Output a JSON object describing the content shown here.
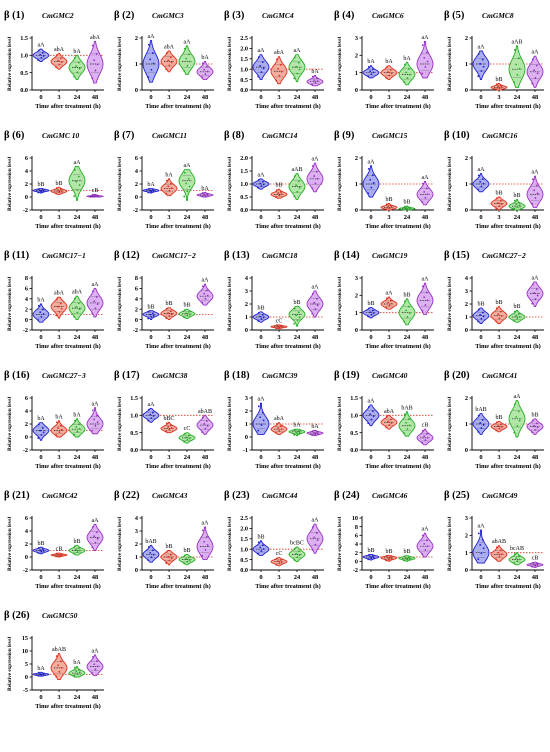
{
  "figure": {
    "background": "#ffffff",
    "x_axis_label": "Time after treatment (h)",
    "y_axis_label": "Relative expression level",
    "x_ticks": [
      "0",
      "3",
      "24",
      "48"
    ],
    "group_colors": [
      "#1f1fd6",
      "#e0301e",
      "#22b022",
      "#9b30c8"
    ],
    "fill_colors": [
      "#9ea0f0",
      "#f2a08f",
      "#a6e39a",
      "#d6a3ee"
    ],
    "baseline_color": "#e0301e"
  },
  "chart_data": [
    {
      "type": "violin",
      "panel": "β (1)",
      "gene": "CmGMC2",
      "ylim": [
        0,
        1.5
      ],
      "yticks": [
        "0.0",
        "0.5",
        "1.0",
        "1.5"
      ],
      "baseline": 1,
      "x": [
        "0",
        "3",
        "24",
        "48"
      ],
      "medians": [
        1.0,
        0.82,
        0.65,
        0.75
      ],
      "mins": [
        0.82,
        0.6,
        0.3,
        0.2
      ],
      "maxs": [
        1.18,
        1.05,
        1.0,
        1.4
      ],
      "letters": [
        "aA",
        "abA",
        "bA",
        "abA"
      ]
    },
    {
      "type": "violin",
      "panel": "β (2)",
      "gene": "CmGMC3",
      "ylim": [
        0,
        2
      ],
      "yticks": [
        "0",
        "1",
        "2"
      ],
      "baseline": 1,
      "x": [
        "0",
        "3",
        "24",
        "48"
      ],
      "medians": [
        1.0,
        1.1,
        1.1,
        0.7
      ],
      "mins": [
        0.3,
        0.7,
        0.6,
        0.4
      ],
      "maxs": [
        1.9,
        1.5,
        1.7,
        1.1
      ],
      "letters": [
        "aA",
        "abA",
        "aA",
        "bA"
      ]
    },
    {
      "type": "violin",
      "panel": "β (3)",
      "gene": "CmGMC4",
      "ylim": [
        0,
        2.5
      ],
      "yticks": [
        "0.0",
        "0.5",
        "1.0",
        "1.5",
        "2.0",
        "2.5"
      ],
      "baseline": 1,
      "x": [
        "0",
        "3",
        "24",
        "48"
      ],
      "medians": [
        1.1,
        0.9,
        1.1,
        0.4
      ],
      "mins": [
        0.5,
        0.3,
        0.4,
        0.2
      ],
      "maxs": [
        1.7,
        1.6,
        1.7,
        0.7
      ],
      "letters": [
        "aA",
        "abA",
        "aA",
        "bA"
      ]
    },
    {
      "type": "violin",
      "panel": "β (4)",
      "gene": "CmGMC6",
      "ylim": [
        0,
        3
      ],
      "yticks": [
        "0",
        "1",
        "2",
        "3"
      ],
      "baseline": 1,
      "x": [
        "0",
        "3",
        "24",
        "48"
      ],
      "medians": [
        1.0,
        1.0,
        0.9,
        1.5
      ],
      "mins": [
        0.7,
        0.6,
        0.3,
        0.7
      ],
      "maxs": [
        1.4,
        1.4,
        1.6,
        2.8
      ],
      "letters": [
        "bA",
        "bA",
        "bA",
        "aA"
      ]
    },
    {
      "type": "violin",
      "panel": "β (5)",
      "gene": "CmGMC8",
      "ylim": [
        0,
        2
      ],
      "yticks": [
        "0",
        "1",
        "2"
      ],
      "baseline": 1,
      "x": [
        "0",
        "3",
        "24",
        "48"
      ],
      "medians": [
        1.0,
        0.1,
        0.8,
        0.7
      ],
      "mins": [
        0.4,
        0.0,
        0.1,
        0.1
      ],
      "maxs": [
        1.5,
        0.25,
        1.7,
        1.3
      ],
      "letters": [
        "aA",
        "bB",
        "aAB",
        "aA"
      ]
    },
    {
      "type": "violin",
      "panel": "β (6)",
      "gene": "CmGMC 10",
      "ylim": [
        -2,
        6
      ],
      "yticks": [
        "-2",
        "0",
        "2",
        "4",
        "6"
      ],
      "baseline": 1,
      "x": [
        "0",
        "3",
        "24",
        "48"
      ],
      "medians": [
        1.0,
        0.9,
        2.5,
        0.1
      ],
      "mins": [
        0.6,
        0.4,
        -0.5,
        0.0
      ],
      "maxs": [
        1.3,
        1.5,
        4.7,
        0.4
      ],
      "letters": [
        "bB",
        "bB",
        "aA",
        "cB"
      ]
    },
    {
      "type": "violin",
      "panel": "β (7)",
      "gene": "CmGMC11",
      "ylim": [
        -2,
        6
      ],
      "yticks": [
        "-2",
        "0",
        "2",
        "4",
        "6"
      ],
      "baseline": 1,
      "x": [
        "0",
        "3",
        "24",
        "48"
      ],
      "medians": [
        1.0,
        1.3,
        2.5,
        0.3
      ],
      "mins": [
        0.6,
        0.2,
        -0.5,
        0.0
      ],
      "maxs": [
        1.3,
        2.8,
        4.2,
        0.7
      ],
      "letters": [
        "bA",
        "bA",
        "aA",
        "bA"
      ]
    },
    {
      "type": "violin",
      "panel": "β (8)",
      "gene": "CmGMC14",
      "ylim": [
        0,
        2
      ],
      "yticks": [
        "0.0",
        "0.5",
        "1.0",
        "1.5",
        "2.0"
      ],
      "baseline": 1,
      "x": [
        "0",
        "3",
        "24",
        "48"
      ],
      "medians": [
        1.0,
        0.6,
        0.9,
        1.2
      ],
      "mins": [
        0.8,
        0.45,
        0.4,
        0.7
      ],
      "maxs": [
        1.2,
        0.8,
        1.4,
        1.8
      ],
      "letters": [
        "aA",
        "bB",
        "aAB",
        "aA"
      ]
    },
    {
      "type": "violin",
      "panel": "β (9)",
      "gene": "CmGMC15",
      "ylim": [
        0,
        2
      ],
      "yticks": [
        "0",
        "1",
        "2"
      ],
      "baseline": 1,
      "x": [
        "0",
        "3",
        "24",
        "48"
      ],
      "medians": [
        1.0,
        0.1,
        0.05,
        0.6
      ],
      "mins": [
        0.5,
        0.0,
        0.0,
        0.2
      ],
      "maxs": [
        1.7,
        0.25,
        0.15,
        1.1
      ],
      "letters": [
        "aA",
        "bB",
        "bB",
        "aA"
      ]
    },
    {
      "type": "violin",
      "panel": "β (10)",
      "gene": "CmGMC16",
      "ylim": [
        0,
        2
      ],
      "yticks": [
        "0",
        "1",
        "2"
      ],
      "baseline": 1,
      "x": [
        "0",
        "3",
        "24",
        "48"
      ],
      "medians": [
        1.0,
        0.25,
        0.15,
        0.6
      ],
      "mins": [
        0.7,
        0.0,
        0.0,
        0.1
      ],
      "maxs": [
        1.4,
        0.5,
        0.4,
        1.3
      ],
      "letters": [
        "aA",
        "bB",
        "bB",
        "aA"
      ]
    },
    {
      "type": "violin",
      "panel": "β (11)",
      "gene": "CmGMC17−1",
      "ylim": [
        -2,
        8
      ],
      "yticks": [
        "-2",
        "0",
        "2",
        "4",
        "6",
        "8"
      ],
      "baseline": 1,
      "x": [
        "0",
        "3",
        "24",
        "48"
      ],
      "medians": [
        1.0,
        2.5,
        2.2,
        3.2
      ],
      "mins": [
        -0.5,
        0.3,
        0.0,
        0.5
      ],
      "maxs": [
        3.0,
        4.3,
        4.5,
        6.0
      ],
      "letters": [
        "bA",
        "abA",
        "abA",
        "aA"
      ]
    },
    {
      "type": "violin",
      "panel": "β (12)",
      "gene": "CmGMC17−2",
      "ylim": [
        -2,
        8
      ],
      "yticks": [
        "-2",
        "0",
        "2",
        "4",
        "6",
        "8"
      ],
      "baseline": 1,
      "x": [
        "0",
        "3",
        "24",
        "48"
      ],
      "medians": [
        1.0,
        1.2,
        1.1,
        4.5
      ],
      "mins": [
        0.0,
        0.0,
        0.2,
        2.8
      ],
      "maxs": [
        1.7,
        2.3,
        2.0,
        6.8
      ],
      "letters": [
        "bB",
        "bB",
        "bB",
        "aA"
      ]
    },
    {
      "type": "violin",
      "panel": "β (13)",
      "gene": "CmGMC18",
      "ylim": [
        0,
        4
      ],
      "yticks": [
        "0",
        "1",
        "2",
        "3",
        "4"
      ],
      "baseline": 1,
      "x": [
        "0",
        "3",
        "24",
        "48"
      ],
      "medians": [
        1.0,
        0.25,
        1.2,
        2.0
      ],
      "mins": [
        0.6,
        0.1,
        0.3,
        1.0
      ],
      "maxs": [
        1.4,
        0.4,
        1.8,
        3.0
      ],
      "letters": [
        "bB",
        "cC",
        "bB",
        "aA"
      ]
    },
    {
      "type": "violin",
      "panel": "β (14)",
      "gene": "CmGMC19",
      "ylim": [
        0,
        3
      ],
      "yticks": [
        "0",
        "1",
        "2",
        "3"
      ],
      "baseline": 1,
      "x": [
        "0",
        "3",
        "24",
        "48"
      ],
      "medians": [
        1.0,
        1.5,
        1.0,
        1.7
      ],
      "mins": [
        0.7,
        1.2,
        0.3,
        0.9
      ],
      "maxs": [
        1.3,
        1.9,
        1.8,
        2.7
      ],
      "letters": [
        "bB",
        "aA",
        "bB",
        "aA"
      ]
    },
    {
      "type": "violin",
      "panel": "β (15)",
      "gene": "CmGMC27−2",
      "ylim": [
        0,
        4
      ],
      "yticks": [
        "0",
        "1",
        "2",
        "3",
        "4"
      ],
      "baseline": 1,
      "x": [
        "0",
        "3",
        "24",
        "48"
      ],
      "medians": [
        1.1,
        1.1,
        1.0,
        2.8
      ],
      "mins": [
        0.5,
        0.5,
        0.6,
        1.8
      ],
      "maxs": [
        1.7,
        1.8,
        1.5,
        3.7
      ],
      "letters": [
        "bB",
        "bB",
        "bB",
        "aA"
      ]
    },
    {
      "type": "violin",
      "panel": "β (16)",
      "gene": "CmGMC27−3",
      "ylim": [
        -2,
        6
      ],
      "yticks": [
        "-2",
        "0",
        "2",
        "4",
        "6"
      ],
      "baseline": 1,
      "x": [
        "0",
        "3",
        "24",
        "48"
      ],
      "medians": [
        1.0,
        1.0,
        1.2,
        2.0
      ],
      "mins": [
        -0.5,
        0.0,
        0.0,
        0.5
      ],
      "maxs": [
        2.2,
        2.5,
        2.8,
        4.5
      ],
      "letters": [
        "bA",
        "bA",
        "bA",
        "aA"
      ]
    },
    {
      "type": "violin",
      "panel": "β (17)",
      "gene": "CmGMC38",
      "ylim": [
        0,
        1.5
      ],
      "yticks": [
        "0.0",
        "0.5",
        "1.0",
        "1.5"
      ],
      "baseline": 1,
      "x": [
        "0",
        "3",
        "24",
        "48"
      ],
      "medians": [
        1.0,
        0.62,
        0.35,
        0.72
      ],
      "mins": [
        0.8,
        0.5,
        0.2,
        0.45
      ],
      "maxs": [
        1.2,
        0.8,
        0.5,
        1.0
      ],
      "letters": [
        "aA",
        "bBC",
        "cC",
        "abAB"
      ]
    },
    {
      "type": "violin",
      "panel": "β (18)",
      "gene": "CmGMC39",
      "ylim": [
        -1,
        3
      ],
      "yticks": [
        "-1",
        "0",
        "1",
        "2",
        "3"
      ],
      "baseline": 1,
      "x": [
        "0",
        "3",
        "24",
        "48"
      ],
      "medians": [
        1.0,
        0.6,
        0.4,
        0.3
      ],
      "mins": [
        0.2,
        0.2,
        0.1,
        0.1
      ],
      "maxs": [
        2.6,
        1.1,
        0.6,
        0.5
      ],
      "letters": [
        "aA",
        "abA",
        "bA",
        "bA"
      ]
    },
    {
      "type": "violin",
      "panel": "β (19)",
      "gene": "CmGMC40",
      "ylim": [
        0,
        1.5
      ],
      "yticks": [
        "0.0",
        "0.5",
        "1.0",
        "1.5"
      ],
      "baseline": 1,
      "x": [
        "0",
        "3",
        "24",
        "48"
      ],
      "medians": [
        1.0,
        0.8,
        0.7,
        0.35
      ],
      "mins": [
        0.7,
        0.6,
        0.4,
        0.15
      ],
      "maxs": [
        1.3,
        1.0,
        1.1,
        0.6
      ],
      "letters": [
        "aA",
        "abA",
        "bAB",
        "cB"
      ]
    },
    {
      "type": "violin",
      "panel": "β (20)",
      "gene": "CmGMC41",
      "ylim": [
        0,
        2
      ],
      "yticks": [
        "0",
        "1",
        "2"
      ],
      "baseline": 1,
      "x": [
        "0",
        "3",
        "24",
        "48"
      ],
      "medians": [
        1.0,
        0.9,
        1.2,
        0.9
      ],
      "mins": [
        0.6,
        0.7,
        0.5,
        0.6
      ],
      "maxs": [
        1.4,
        1.1,
        1.9,
        1.2
      ],
      "letters": [
        "bAB",
        "bB",
        "aA",
        "bB"
      ]
    },
    {
      "type": "violin",
      "panel": "β (21)",
      "gene": "CmGMC42",
      "ylim": [
        -2,
        6
      ],
      "yticks": [
        "-2",
        "0",
        "2",
        "4",
        "6"
      ],
      "baseline": 1,
      "x": [
        "0",
        "3",
        "24",
        "48"
      ],
      "medians": [
        1.0,
        0.3,
        1.0,
        3.0
      ],
      "mins": [
        0.5,
        0.0,
        0.3,
        1.0
      ],
      "maxs": [
        1.5,
        0.6,
        1.8,
        5.0
      ],
      "letters": [
        "bB",
        "cB",
        "bB",
        "aA"
      ]
    },
    {
      "type": "violin",
      "panel": "β (22)",
      "gene": "CmGMC43",
      "ylim": [
        0,
        4
      ],
      "yticks": [
        "0",
        "1",
        "2",
        "3",
        "4"
      ],
      "baseline": 1,
      "x": [
        "0",
        "3",
        "24",
        "48"
      ],
      "medians": [
        1.2,
        1.0,
        0.8,
        1.8
      ],
      "mins": [
        0.6,
        0.4,
        0.4,
        0.8
      ],
      "maxs": [
        1.9,
        1.5,
        1.2,
        3.3
      ],
      "letters": [
        "bAB",
        "bB",
        "bB",
        "aA"
      ]
    },
    {
      "type": "violin",
      "panel": "β (23)",
      "gene": "CmGMC44",
      "ylim": [
        0,
        2.5
      ],
      "yticks": [
        "0.0",
        "0.5",
        "1.0",
        "1.5",
        "2.0",
        "2.5"
      ],
      "baseline": 1,
      "x": [
        "0",
        "3",
        "24",
        "48"
      ],
      "medians": [
        1.0,
        0.4,
        0.75,
        1.5
      ],
      "mins": [
        0.7,
        0.2,
        0.4,
        0.8
      ],
      "maxs": [
        1.4,
        0.6,
        1.1,
        2.2
      ],
      "letters": [
        "bB",
        "cC",
        "bcBC",
        "aA"
      ]
    },
    {
      "type": "violin",
      "panel": "β (24)",
      "gene": "CmGMC46",
      "ylim": [
        -2,
        10
      ],
      "yticks": [
        "-2",
        "0",
        "2",
        "4",
        "6",
        "8",
        "10"
      ],
      "baseline": 1,
      "x": [
        "0",
        "3",
        "24",
        "48"
      ],
      "medians": [
        1.0,
        0.8,
        0.7,
        3.5
      ],
      "mins": [
        0.3,
        0.0,
        0.0,
        1.0
      ],
      "maxs": [
        1.6,
        1.4,
        1.3,
        6.5
      ],
      "letters": [
        "bB",
        "bB",
        "bB",
        "aA"
      ]
    },
    {
      "type": "violin",
      "panel": "β (25)",
      "gene": "CmGMC49",
      "ylim": [
        0,
        3
      ],
      "yticks": [
        "0",
        "1",
        "2",
        "3"
      ],
      "baseline": 1,
      "x": [
        "0",
        "3",
        "24",
        "48"
      ],
      "medians": [
        1.0,
        0.9,
        0.6,
        0.3
      ],
      "mins": [
        0.4,
        0.5,
        0.3,
        0.15
      ],
      "maxs": [
        2.3,
        1.4,
        1.0,
        0.45
      ],
      "letters": [
        "aA",
        "abAB",
        "bcAB",
        "cB"
      ]
    },
    {
      "type": "violin",
      "panel": "β (26)",
      "gene": "CmGMC50",
      "ylim": [
        -5,
        15
      ],
      "yticks": [
        "-5",
        "0",
        "5",
        "10",
        "15"
      ],
      "baseline": 1,
      "x": [
        "0",
        "3",
        "24",
        "48"
      ],
      "medians": [
        1.0,
        3.5,
        1.5,
        4.0
      ],
      "mins": [
        0.3,
        -1.0,
        0.0,
        0.5
      ],
      "maxs": [
        1.8,
        9.0,
        4.0,
        8.5
      ],
      "letters": [
        "bA",
        "abAB",
        "bA",
        "aA"
      ]
    }
  ]
}
